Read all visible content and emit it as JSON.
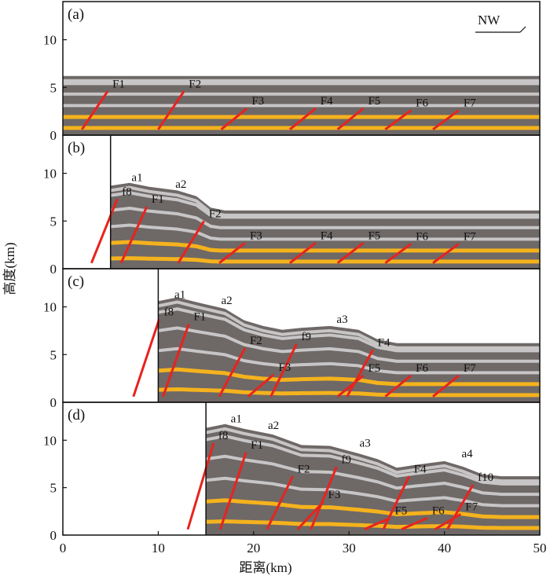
{
  "figure": {
    "direction_label": "NW",
    "x_axis_title": "距离(km)",
    "y_axis_title": "高度(km)",
    "x_ticks": [
      "0",
      "10",
      "20",
      "30",
      "40",
      "50"
    ],
    "y_ticks": [
      "0",
      "5",
      "10"
    ],
    "x_range": [
      0,
      50
    ],
    "y_range": [
      0,
      14
    ],
    "colors": {
      "dark_layer": "#6e6867",
      "light_layer": "#c7c5c6",
      "yellow_layer": "#f4b21d",
      "fault": "#e8231d",
      "fault_trace": "#8a2a22"
    },
    "panels": [
      {
        "id": "a",
        "label": "(a)",
        "wall_km": 0,
        "faults": [
          {
            "label": "F1",
            "x": 5.2,
            "y": 5.0
          },
          {
            "label": "F2",
            "x": 13.2,
            "y": 5.0
          },
          {
            "label": "F3",
            "x": 19.8,
            "y": 3.2
          },
          {
            "label": "F4",
            "x": 27.0,
            "y": 3.2
          },
          {
            "label": "F5",
            "x": 32.0,
            "y": 3.2
          },
          {
            "label": "F6",
            "x": 37.0,
            "y": 3.0
          },
          {
            "label": "F7",
            "x": 42.0,
            "y": 3.0
          }
        ]
      },
      {
        "id": "b",
        "label": "(b)",
        "wall_km": 5,
        "faults": [
          {
            "label": "a1",
            "x": 7.2,
            "y": 9.2
          },
          {
            "label": "a2",
            "x": 11.8,
            "y": 8.5
          },
          {
            "label": "f8",
            "x": 6.2,
            "y": 7.7
          },
          {
            "label": "F1",
            "x": 9.3,
            "y": 6.9
          },
          {
            "label": "F2",
            "x": 15.3,
            "y": 5.4
          },
          {
            "label": "F3",
            "x": 19.6,
            "y": 3.1
          },
          {
            "label": "F4",
            "x": 27.0,
            "y": 3.1
          },
          {
            "label": "F5",
            "x": 32.0,
            "y": 3.1
          },
          {
            "label": "F6",
            "x": 37.0,
            "y": 3.0
          },
          {
            "label": "F7",
            "x": 42.0,
            "y": 3.0
          }
        ]
      },
      {
        "id": "c",
        "label": "(c)",
        "wall_km": 10,
        "faults": [
          {
            "label": "a1",
            "x": 11.7,
            "y": 10.9
          },
          {
            "label": "a2",
            "x": 16.6,
            "y": 10.3
          },
          {
            "label": "a3",
            "x": 28.7,
            "y": 8.3
          },
          {
            "label": "f8",
            "x": 10.6,
            "y": 9.1
          },
          {
            "label": "F1",
            "x": 13.7,
            "y": 8.6
          },
          {
            "label": "F2",
            "x": 19.6,
            "y": 6.1
          },
          {
            "label": "f9",
            "x": 25.0,
            "y": 6.5
          },
          {
            "label": "F4",
            "x": 33.0,
            "y": 5.9
          },
          {
            "label": "F3",
            "x": 22.6,
            "y": 3.3
          },
          {
            "label": "F5",
            "x": 32.0,
            "y": 3.2
          },
          {
            "label": "F6",
            "x": 37.0,
            "y": 3.2
          },
          {
            "label": "F7",
            "x": 42.0,
            "y": 3.2
          }
        ]
      },
      {
        "id": "d",
        "label": "(d)",
        "wall_km": 15,
        "faults": [
          {
            "label": "a1",
            "x": 17.6,
            "y": 11.9
          },
          {
            "label": "a2",
            "x": 21.5,
            "y": 11.2
          },
          {
            "label": "a3",
            "x": 31.1,
            "y": 9.3
          },
          {
            "label": "a4",
            "x": 41.8,
            "y": 8.2
          },
          {
            "label": "f8",
            "x": 16.3,
            "y": 10.1
          },
          {
            "label": "F1",
            "x": 19.7,
            "y": 9.1
          },
          {
            "label": "f9",
            "x": 29.2,
            "y": 7.6
          },
          {
            "label": "F2",
            "x": 24.6,
            "y": 6.6
          },
          {
            "label": "F4",
            "x": 36.8,
            "y": 6.6
          },
          {
            "label": "f10",
            "x": 43.5,
            "y": 5.7
          },
          {
            "label": "F3",
            "x": 27.8,
            "y": 3.9
          },
          {
            "label": "F5",
            "x": 34.8,
            "y": 2.2
          },
          {
            "label": "F6",
            "x": 38.7,
            "y": 2.2
          },
          {
            "label": "F7",
            "x": 42.2,
            "y": 2.6
          }
        ]
      }
    ]
  }
}
